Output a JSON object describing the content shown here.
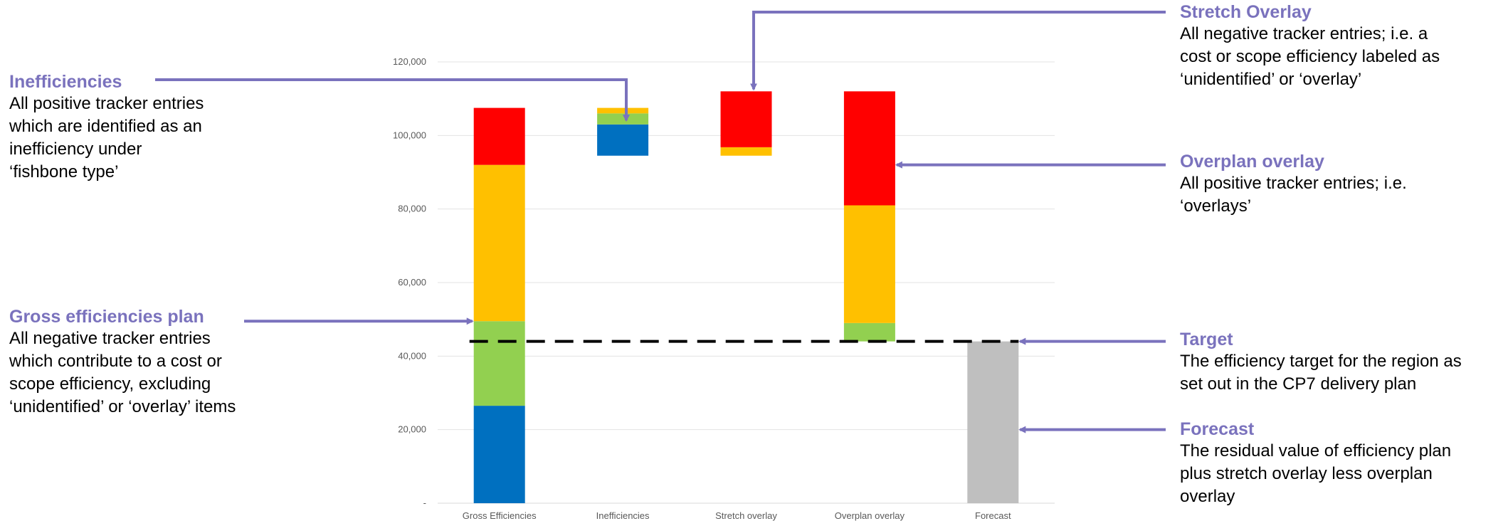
{
  "colors": {
    "blue": "#0070c0",
    "green": "#92d050",
    "yellow": "#ffc000",
    "red": "#ff0000",
    "grey": "#bfbfbf",
    "annotation": "#7a72bd",
    "target_line": "#000000"
  },
  "chart_data": {
    "type": "bar",
    "subtype": "stacked-waterfall",
    "categories": [
      "Gross Efficiencies",
      "Inefficiencies",
      "Stretch overlay",
      "Overplan overlay",
      "Forecast"
    ],
    "y_ticks": [
      "-",
      "20,000",
      "40,000",
      "60,000",
      "80,000",
      "100,000",
      "120,000"
    ],
    "ylim": [
      0,
      120000
    ],
    "grid": true,
    "target_value": 44000,
    "bars": [
      {
        "category": "Gross Efficiencies",
        "segments": [
          {
            "color": "blue",
            "from": 0,
            "to": 26500
          },
          {
            "color": "green",
            "from": 26500,
            "to": 49500
          },
          {
            "color": "yellow",
            "from": 49500,
            "to": 92000
          },
          {
            "color": "red",
            "from": 92000,
            "to": 107500
          }
        ]
      },
      {
        "category": "Inefficiencies",
        "segments": [
          {
            "color": "blue",
            "from": 94500,
            "to": 103000
          },
          {
            "color": "green",
            "from": 103000,
            "to": 106000
          },
          {
            "color": "yellow",
            "from": 106000,
            "to": 107500
          }
        ]
      },
      {
        "category": "Stretch overlay",
        "segments": [
          {
            "color": "yellow",
            "from": 94500,
            "to": 96800
          },
          {
            "color": "red",
            "from": 96800,
            "to": 112000
          }
        ]
      },
      {
        "category": "Overplan overlay",
        "segments": [
          {
            "color": "green",
            "from": 44000,
            "to": 49000
          },
          {
            "color": "yellow",
            "from": 49000,
            "to": 81000
          },
          {
            "color": "red",
            "from": 81000,
            "to": 112000
          }
        ]
      },
      {
        "category": "Forecast",
        "segments": [
          {
            "color": "grey",
            "from": 0,
            "to": 44000
          }
        ]
      }
    ]
  },
  "annotations": {
    "inefficiencies": {
      "title": "Inefficiencies",
      "lines": [
        "All positive tracker entries",
        "which are identified as an",
        "inefficiency under",
        "‘fishbone type’"
      ]
    },
    "gross": {
      "title": "Gross efficiencies plan",
      "lines": [
        "All negative tracker entries",
        "which contribute to a cost or",
        "scope efficiency, excluding",
        "‘unidentified’ or ‘overlay’ items"
      ]
    },
    "stretch": {
      "title": "Stretch Overlay",
      "lines": [
        "All negative tracker entries; i.e. a",
        "cost or scope efficiency labeled as",
        "‘unidentified’ or ‘overlay’"
      ]
    },
    "overplan": {
      "title": "Overplan overlay",
      "lines": [
        "All positive tracker entries; i.e.",
        "‘overlays’"
      ]
    },
    "target": {
      "title": "Target",
      "lines": [
        "The efficiency target for the region as",
        "set out in the CP7 delivery plan"
      ]
    },
    "forecast": {
      "title": "Forecast",
      "lines": [
        "The residual value of efficiency plan",
        "plus stretch overlay less overplan",
        "overlay"
      ]
    }
  }
}
